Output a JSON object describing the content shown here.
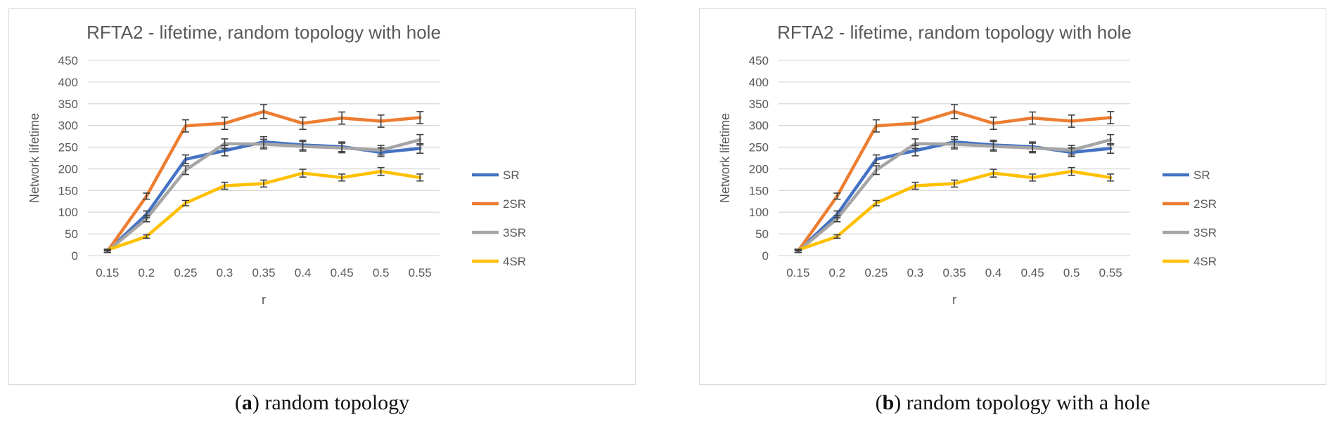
{
  "colors": {
    "SR": "#4472C4",
    "2SR": "#ED7D31",
    "3SR": "#A5A5A5",
    "4SR": "#FFC000",
    "grid": "#d9d9d9",
    "text": "#595959",
    "errorbar": "#404040"
  },
  "captions": [
    {
      "letter": "a",
      "text": "random topology"
    },
    {
      "letter": "b",
      "text": "random topology with a hole"
    }
  ],
  "chart_data": [
    {
      "type": "line",
      "title": "RFTA2 - lifetime, random topology with hole",
      "xlabel": "r",
      "ylabel": "Network lifetime",
      "categories": [
        "0.15",
        "0.2",
        "0.25",
        "0.3",
        "0.35",
        "0.4",
        "0.45",
        "0.5",
        "0.55"
      ],
      "ylim": [
        0,
        450
      ],
      "yticks": [
        "0",
        "50",
        "100",
        "150",
        "200",
        "250",
        "300",
        "350",
        "400",
        "450"
      ],
      "grid": true,
      "legend": "right",
      "series": [
        {
          "name": "SR",
          "values": [
            10,
            95,
            222,
            242,
            262,
            255,
            251,
            238,
            247
          ],
          "errors": [
            3,
            8,
            10,
            12,
            12,
            11,
            11,
            10,
            11
          ]
        },
        {
          "name": "2SR",
          "values": [
            10,
            137,
            299,
            305,
            332,
            305,
            317,
            310,
            318
          ],
          "errors": [
            3,
            7,
            14,
            14,
            16,
            14,
            14,
            14,
            14
          ]
        },
        {
          "name": "3SR",
          "values": [
            10,
            85,
            197,
            258,
            257,
            252,
            248,
            243,
            267
          ],
          "errors": [
            3,
            7,
            10,
            11,
            11,
            11,
            11,
            11,
            12
          ]
        },
        {
          "name": "4SR",
          "values": [
            13,
            44,
            121,
            161,
            166,
            190,
            180,
            194,
            180
          ],
          "errors": [
            2,
            4,
            6,
            8,
            8,
            9,
            8,
            9,
            8
          ]
        }
      ]
    },
    {
      "type": "line",
      "title": "RFTA2 - lifetime, random topology with hole",
      "xlabel": "r",
      "ylabel": "Network lifetime",
      "categories": [
        "0.15",
        "0.2",
        "0.25",
        "0.3",
        "0.35",
        "0.4",
        "0.45",
        "0.5",
        "0.55"
      ],
      "ylim": [
        0,
        450
      ],
      "yticks": [
        "0",
        "50",
        "100",
        "150",
        "200",
        "250",
        "300",
        "350",
        "400",
        "450"
      ],
      "grid": true,
      "legend": "right",
      "series": [
        {
          "name": "SR",
          "values": [
            10,
            95,
            222,
            242,
            262,
            255,
            251,
            238,
            247
          ],
          "errors": [
            3,
            8,
            10,
            12,
            12,
            11,
            11,
            10,
            11
          ]
        },
        {
          "name": "2SR",
          "values": [
            10,
            137,
            299,
            305,
            332,
            305,
            317,
            310,
            318
          ],
          "errors": [
            3,
            7,
            14,
            14,
            16,
            14,
            14,
            14,
            14
          ]
        },
        {
          "name": "3SR",
          "values": [
            10,
            85,
            197,
            258,
            257,
            252,
            248,
            243,
            267
          ],
          "errors": [
            3,
            7,
            10,
            11,
            11,
            11,
            11,
            11,
            12
          ]
        },
        {
          "name": "4SR",
          "values": [
            13,
            44,
            121,
            161,
            166,
            190,
            180,
            194,
            180
          ],
          "errors": [
            2,
            4,
            6,
            8,
            8,
            9,
            8,
            9,
            8
          ]
        }
      ]
    }
  ]
}
